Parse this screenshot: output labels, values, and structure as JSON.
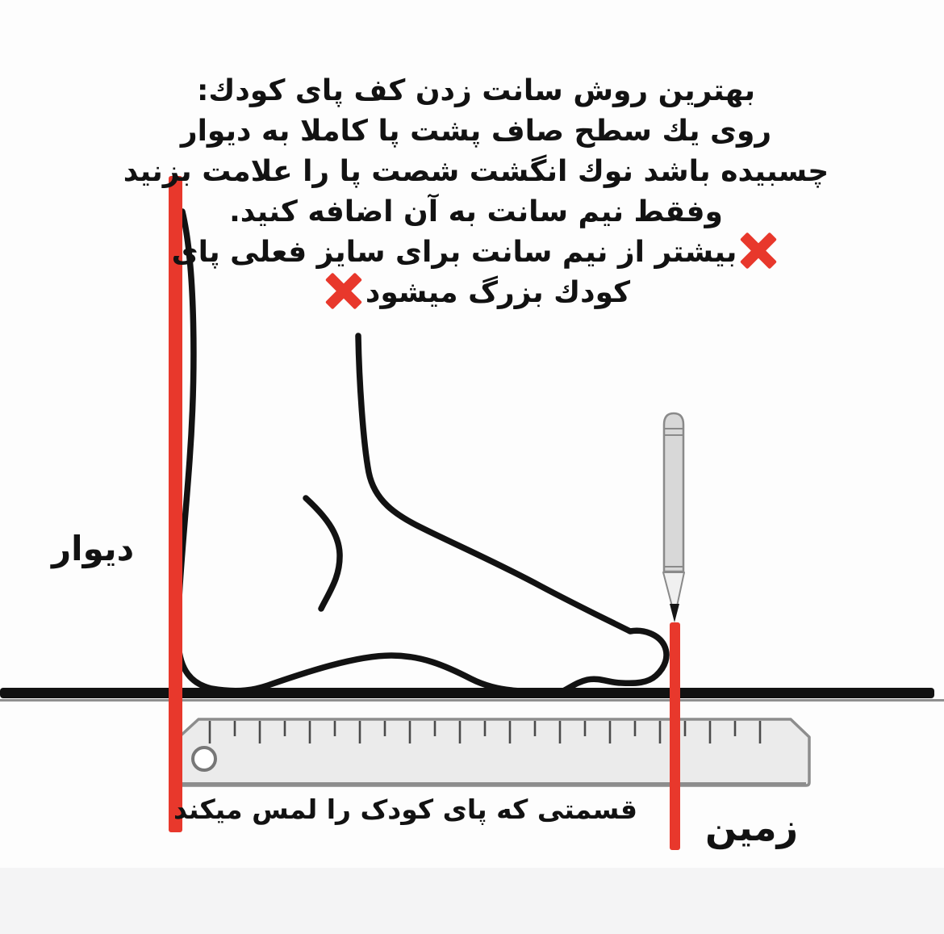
{
  "instructions": {
    "line1": "بهترين روش سانت زدن كف پاى كودك:",
    "line2": "روى يك سطح صاف پشت پا كاملا به ديوار",
    "line3": "چسبيده باشد نوك انگشت شصت پا را علامت بزنيد",
    "line4": "وفقط نيم سانت به آن اضافه كنيد.",
    "warning_line1": "بيشتر از نيم سانت براى سايز فعلى پاى",
    "warning_line2": "كودك بزرگ ميشود"
  },
  "labels": {
    "wall": "دیوار",
    "ground": "زمین",
    "ruler_caption": "قسمتی که پای کودک را لمس میکند"
  },
  "icons": {
    "warning_start": "red-cross-icon",
    "warning_end": "red-cross-icon"
  },
  "colors": {
    "page_bg": "#fdfdfd",
    "ink_black": "#121212",
    "accent_red": "#e8382c",
    "ruler_fill": "#ebebeb",
    "ruler_stroke": "#8d8d8d",
    "pencil_fill": "#d8d8d8",
    "bottom_band": "#f4f4f5"
  }
}
